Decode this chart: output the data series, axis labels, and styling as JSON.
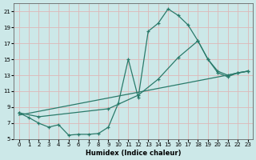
{
  "background_color": "#cce8e8",
  "grid_color": "#ddb8b8",
  "line_color": "#2a7a6a",
  "xlabel": "Humidex (Indice chaleur)",
  "xlim": [
    -0.5,
    23.5
  ],
  "ylim": [
    5,
    22
  ],
  "yticks": [
    5,
    7,
    9,
    11,
    13,
    15,
    17,
    19,
    21
  ],
  "xticks": [
    0,
    1,
    2,
    3,
    4,
    5,
    6,
    7,
    8,
    9,
    10,
    11,
    12,
    13,
    14,
    15,
    16,
    17,
    18,
    19,
    20,
    21,
    22,
    23
  ],
  "curve1_x": [
    0,
    1,
    2,
    3,
    4,
    5,
    6,
    7,
    8,
    9,
    10,
    11,
    12,
    13,
    14,
    15,
    16,
    17,
    18,
    19,
    20,
    21,
    22,
    23
  ],
  "curve1_y": [
    8.3,
    7.7,
    7.0,
    6.5,
    6.8,
    5.5,
    5.6,
    5.6,
    5.7,
    6.5,
    9.5,
    15.0,
    10.2,
    18.5,
    19.5,
    21.3,
    20.5,
    19.3,
    17.3,
    15.0,
    13.3,
    12.8,
    13.3,
    13.5
  ],
  "curve2_x": [
    0,
    2,
    9,
    12,
    14,
    16,
    18,
    19,
    20,
    21,
    22,
    23
  ],
  "curve2_y": [
    8.3,
    7.8,
    8.8,
    10.5,
    12.5,
    15.2,
    17.3,
    15.0,
    13.5,
    13.0,
    13.3,
    13.5
  ],
  "curve3_x": [
    0,
    23
  ],
  "curve3_y": [
    8.0,
    13.5
  ]
}
